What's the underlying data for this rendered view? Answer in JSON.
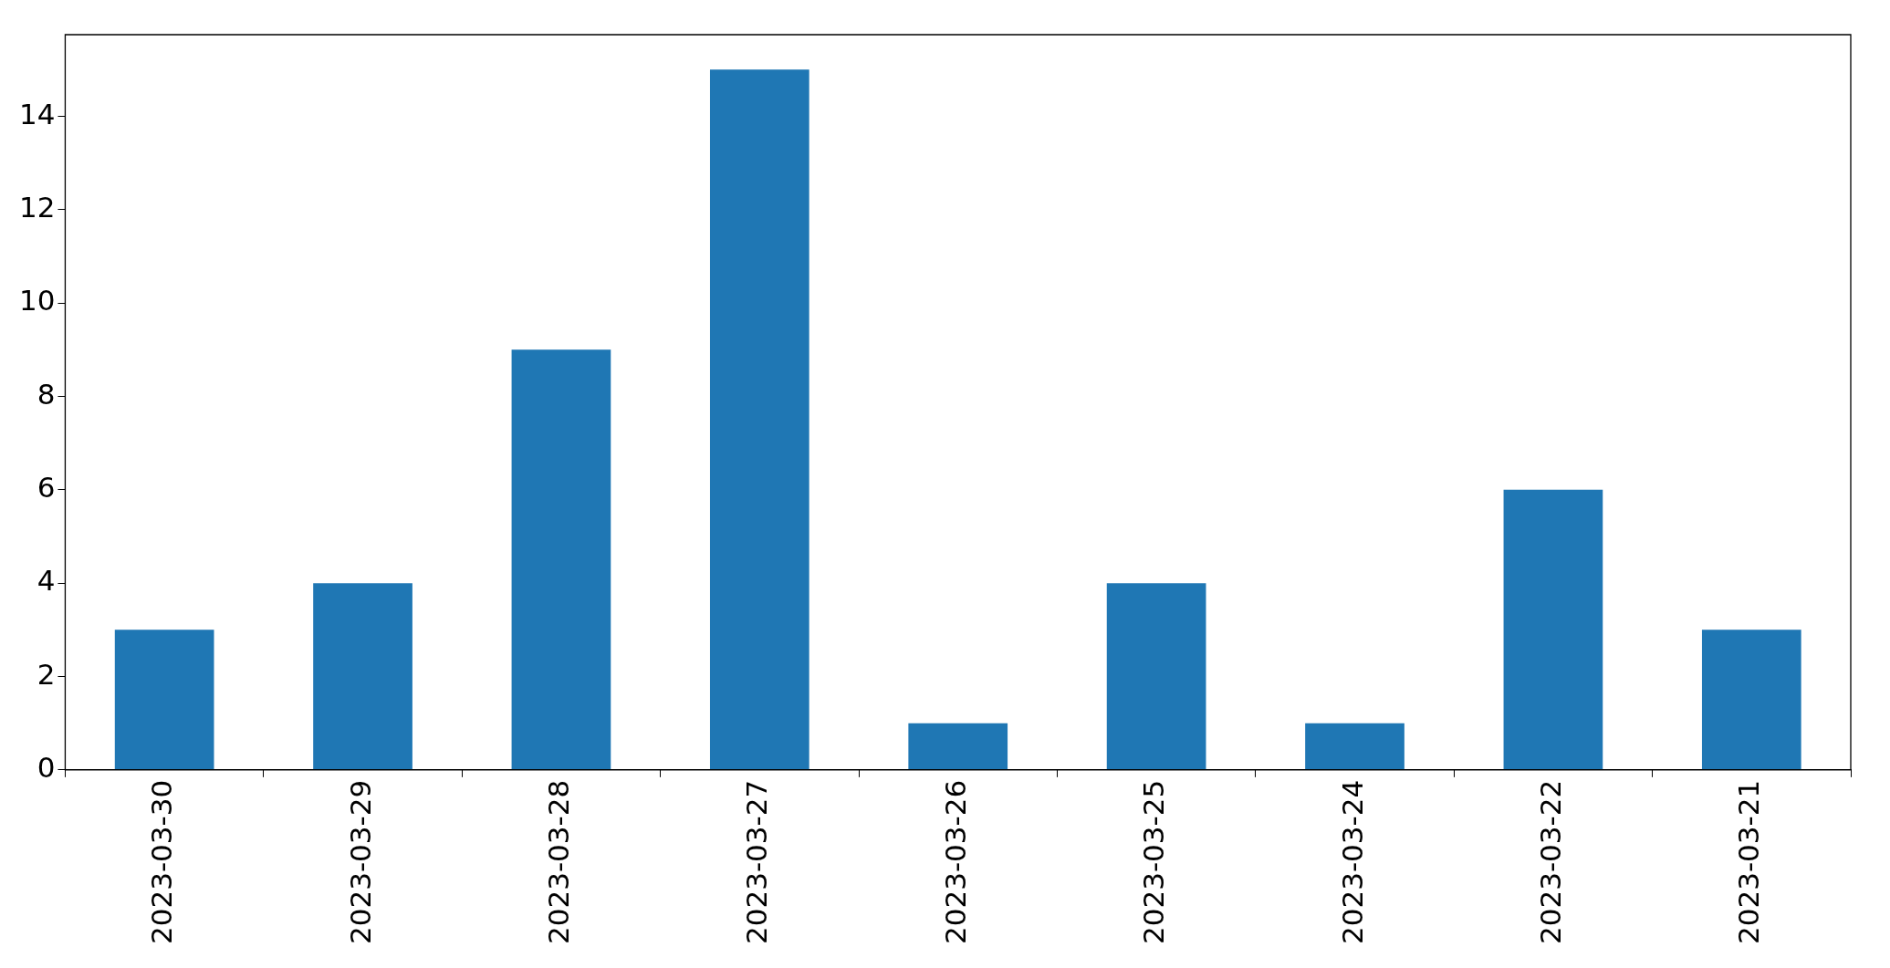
{
  "chart_data": {
    "type": "bar",
    "categories": [
      "2023-03-30",
      "2023-03-29",
      "2023-03-28",
      "2023-03-27",
      "2023-03-26",
      "2023-03-25",
      "2023-03-24",
      "2023-03-22",
      "2023-03-21"
    ],
    "values": [
      3,
      4,
      9,
      15,
      1,
      4,
      1,
      6,
      3
    ],
    "color": "#1f77b4",
    "ylim": [
      0,
      15.75
    ],
    "yticks": [
      0,
      2,
      4,
      6,
      8,
      10,
      12,
      14
    ],
    "grid": false,
    "legend": false
  }
}
